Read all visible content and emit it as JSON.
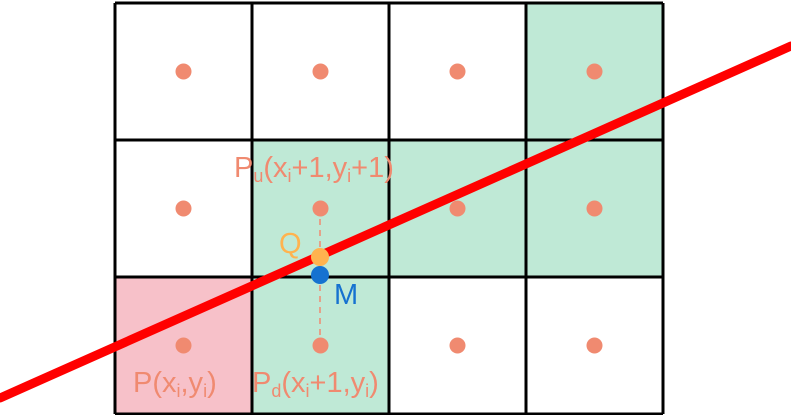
{
  "diagram": {
    "grid": {
      "rows": 3,
      "cols": 4,
      "highlighted_cells": [
        {
          "row": 0,
          "col": 3,
          "color": "#bfe9d6"
        },
        {
          "row": 1,
          "col": 1,
          "color": "#bfe9d6"
        },
        {
          "row": 1,
          "col": 2,
          "color": "#bfe9d6"
        },
        {
          "row": 1,
          "col": 3,
          "color": "#bfe9d6"
        },
        {
          "row": 2,
          "col": 0,
          "color": "#f7c1c9"
        },
        {
          "row": 2,
          "col": 1,
          "color": "#bfe9d6"
        }
      ]
    },
    "colors": {
      "grid_line": "#000000",
      "pixel_center": "#f08a70",
      "line": "#ff0000",
      "point_q": "#ffb34f",
      "point_m": "#1672d0",
      "label_text": "#f08a70",
      "label_q": "#ffb34f",
      "label_m": "#1672d0",
      "dashed_connector": "#f08a70"
    },
    "labels": {
      "pu": {
        "main": "P",
        "sub1": "u",
        "mid1": "(x",
        "sub2": "i",
        "mid2": "+1,y",
        "sub3": "i",
        "end": "+1)"
      },
      "p": {
        "main": "P(x",
        "sub1": "i",
        "mid1": ",y",
        "sub2": "i",
        "end": ")"
      },
      "pd": {
        "main": "P",
        "sub1": "d",
        "mid1": "(x",
        "sub2": "i",
        "mid2": "+1,y",
        "sub3": "i",
        "end": ")"
      },
      "q": "Q",
      "m": "M"
    }
  }
}
